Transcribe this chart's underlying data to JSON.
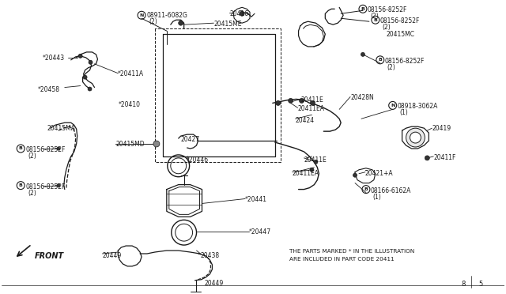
{
  "bg_color": "#ffffff",
  "line_color": "#1a1a1a",
  "text_color": "#1a1a1a",
  "figsize": [
    6.4,
    3.72
  ],
  "dpi": 100,
  "bottom_text1": "THE PARTS MARKED * IN THE ILLUSTRATION",
  "bottom_text2": "ARE INCLUDED IN PART CODE 20411",
  "page_num1": "8",
  "page_num2": "5",
  "center_bottom_label": "20449"
}
